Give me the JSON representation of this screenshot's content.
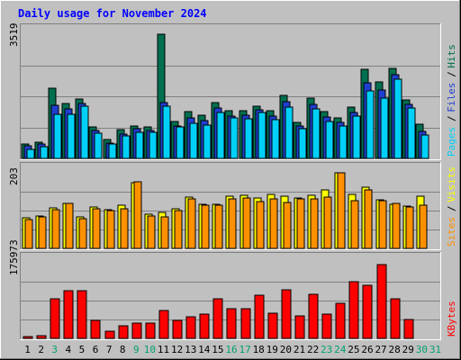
{
  "chart_data": {
    "type": "bar",
    "title": "Daily usage for November 2024",
    "days": [
      "1",
      "2",
      "3",
      "4",
      "5",
      "6",
      "7",
      "8",
      "9",
      "10",
      "11",
      "12",
      "13",
      "14",
      "15",
      "16",
      "17",
      "18",
      "19",
      "20",
      "21",
      "22",
      "23",
      "24",
      "25",
      "26",
      "27",
      "28",
      "29",
      "30",
      "31"
    ],
    "weekend_days": [
      "3",
      "9",
      "10",
      "16",
      "17",
      "23",
      "24",
      "30",
      "31"
    ],
    "panels": [
      {
        "id": "hits",
        "max_label": "3519",
        "ylim": [
          0,
          3519
        ],
        "legend": [
          "Pages",
          "/",
          "Files",
          "/",
          "Hits"
        ],
        "series": [
          {
            "name": "Hits",
            "values": [
              420,
              470,
              1990,
              1560,
              1690,
              880,
              530,
              820,
              920,
              890,
              3519,
              1040,
              1330,
              1230,
              1590,
              1360,
              1360,
              1490,
              1350,
              1790,
              1030,
              1700,
              1330,
              1160,
              1450,
              2520,
              2170,
              2560,
              1670,
              960,
              0
            ]
          },
          {
            "name": "Files",
            "values": [
              360,
              400,
              1510,
              1400,
              1550,
              780,
              440,
              700,
              850,
              790,
              1590,
              920,
              1160,
              1060,
              1440,
              1200,
              1220,
              1380,
              1210,
              1600,
              920,
              1540,
              1180,
              1030,
              1300,
              2130,
              1950,
              2370,
              1520,
              760,
              0
            ]
          },
          {
            "name": "Pages",
            "values": [
              250,
              320,
              1240,
              1240,
              1480,
              720,
              410,
              640,
              740,
              730,
              1480,
              880,
              1000,
              950,
              1300,
              1140,
              1120,
              1300,
              1090,
              1450,
              850,
              1400,
              1050,
              930,
              1190,
              1900,
              1710,
              2250,
              1430,
              660,
              0
            ]
          }
        ]
      },
      {
        "id": "visits",
        "max_label": "203",
        "ylim": [
          0,
          203
        ],
        "legend": [
          "Sites",
          "/",
          "Visits"
        ],
        "series": [
          {
            "name": "Visits",
            "values": [
              83,
              88,
              108,
              122,
              85,
              110,
              105,
              116,
              177,
              91,
              96,
              106,
              138,
              118,
              118,
              140,
              142,
              136,
              144,
              140,
              136,
              142,
              157,
              203,
              144,
              164,
              131,
              119,
              114,
              140,
              0
            ]
          },
          {
            "name": "Sites",
            "values": [
              78,
              84,
              104,
              120,
              80,
              106,
              101,
              106,
              179,
              88,
              84,
              102,
              133,
              116,
              115,
              132,
              135,
              126,
              132,
              123,
              133,
              134,
              138,
              203,
              129,
              158,
              129,
              120,
              110,
              115,
              0
            ]
          }
        ]
      },
      {
        "id": "kbytes",
        "max_label": "175973",
        "ylim": [
          0,
          175973
        ],
        "legend": [
          "KBytes"
        ],
        "series": [
          {
            "name": "KBytes",
            "values": [
              4700,
              6100,
              91500,
              111300,
              111800,
              41700,
              17200,
              29200,
              34700,
              34700,
              64700,
              42700,
              50100,
              57200,
              92000,
              70000,
              68400,
              100900,
              59400,
              112900,
              52300,
              103500,
              56400,
              81100,
              132300,
              122900,
              171000,
              92000,
              44500,
              0,
              0
            ]
          }
        ]
      }
    ],
    "colors": {
      "hits": "#006f4f",
      "files": "#1f3fd0",
      "pages": "#00d0f8",
      "visits": "#ffff00",
      "sites": "#ff9000",
      "kbytes": "#ff0000",
      "title": "#0000ff",
      "weekday_label": "#000000",
      "weekend_label": "#00a070"
    }
  }
}
